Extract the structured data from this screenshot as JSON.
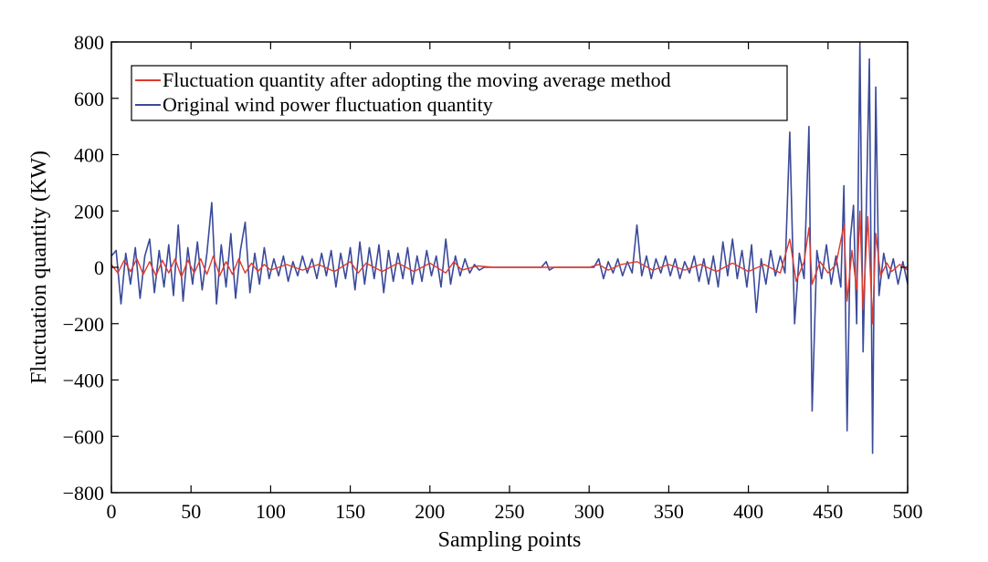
{
  "chart_data": {
    "type": "line",
    "title": "",
    "xlabel": "Sampling points",
    "ylabel": "Fluctuation quantity (KW)",
    "xlim": [
      0,
      500
    ],
    "ylim": [
      -800,
      800
    ],
    "x_ticks": [
      0,
      50,
      100,
      150,
      200,
      250,
      300,
      350,
      400,
      450,
      500
    ],
    "y_ticks": [
      800,
      600,
      400,
      200,
      0,
      -200,
      -400,
      -600,
      -800
    ],
    "x_tick_labels": [
      "0",
      "50",
      "100",
      "150",
      "200",
      "250",
      "300",
      "350",
      "400",
      "450",
      "500"
    ],
    "y_tick_labels": [
      "800",
      "600",
      "400",
      "200",
      "0",
      "−200",
      "−400",
      "−600",
      "−800"
    ],
    "grid": false,
    "legend_position": "top-left",
    "series": [
      {
        "name": "Original wind power fluctuation quantity",
        "color": "#3a4a9a",
        "points": [
          [
            0,
            40
          ],
          [
            3,
            60
          ],
          [
            6,
            -130
          ],
          [
            9,
            50
          ],
          [
            12,
            -60
          ],
          [
            15,
            70
          ],
          [
            18,
            -110
          ],
          [
            21,
            40
          ],
          [
            24,
            100
          ],
          [
            27,
            -90
          ],
          [
            30,
            60
          ],
          [
            33,
            -70
          ],
          [
            36,
            80
          ],
          [
            39,
            -100
          ],
          [
            42,
            150
          ],
          [
            45,
            -120
          ],
          [
            48,
            70
          ],
          [
            51,
            -60
          ],
          [
            54,
            90
          ],
          [
            57,
            -80
          ],
          [
            60,
            50
          ],
          [
            63,
            230
          ],
          [
            66,
            -130
          ],
          [
            69,
            80
          ],
          [
            72,
            -70
          ],
          [
            75,
            120
          ],
          [
            78,
            -110
          ],
          [
            81,
            60
          ],
          [
            84,
            160
          ],
          [
            87,
            -90
          ],
          [
            90,
            50
          ],
          [
            93,
            -60
          ],
          [
            96,
            70
          ],
          [
            99,
            -40
          ],
          [
            102,
            30
          ],
          [
            105,
            -30
          ],
          [
            108,
            40
          ],
          [
            111,
            -50
          ],
          [
            114,
            20
          ],
          [
            117,
            -30
          ],
          [
            120,
            40
          ],
          [
            123,
            -20
          ],
          [
            126,
            30
          ],
          [
            129,
            -40
          ],
          [
            132,
            50
          ],
          [
            135,
            -30
          ],
          [
            138,
            60
          ],
          [
            141,
            -70
          ],
          [
            144,
            50
          ],
          [
            147,
            -40
          ],
          [
            150,
            70
          ],
          [
            153,
            -80
          ],
          [
            156,
            90
          ],
          [
            159,
            -60
          ],
          [
            162,
            70
          ],
          [
            165,
            -40
          ],
          [
            168,
            80
          ],
          [
            171,
            -90
          ],
          [
            174,
            60
          ],
          [
            177,
            -50
          ],
          [
            180,
            50
          ],
          [
            183,
            -40
          ],
          [
            186,
            70
          ],
          [
            189,
            -60
          ],
          [
            192,
            40
          ],
          [
            195,
            -50
          ],
          [
            198,
            60
          ],
          [
            201,
            -30
          ],
          [
            204,
            40
          ],
          [
            207,
            -70
          ],
          [
            210,
            100
          ],
          [
            213,
            -60
          ],
          [
            216,
            40
          ],
          [
            219,
            -30
          ],
          [
            222,
            30
          ],
          [
            225,
            -20
          ],
          [
            228,
            10
          ],
          [
            231,
            -10
          ],
          [
            234,
            0
          ],
          [
            240,
            0
          ],
          [
            250,
            0
          ],
          [
            260,
            0
          ],
          [
            270,
            0
          ],
          [
            273,
            20
          ],
          [
            275,
            -10
          ],
          [
            278,
            0
          ],
          [
            290,
            0
          ],
          [
            300,
            0
          ],
          [
            303,
            0
          ],
          [
            306,
            30
          ],
          [
            309,
            -40
          ],
          [
            312,
            20
          ],
          [
            315,
            -20
          ],
          [
            318,
            30
          ],
          [
            321,
            -30
          ],
          [
            324,
            20
          ],
          [
            327,
            -20
          ],
          [
            330,
            150
          ],
          [
            333,
            -30
          ],
          [
            336,
            40
          ],
          [
            339,
            -40
          ],
          [
            342,
            30
          ],
          [
            345,
            -20
          ],
          [
            348,
            40
          ],
          [
            351,
            -30
          ],
          [
            354,
            30
          ],
          [
            357,
            -40
          ],
          [
            360,
            20
          ],
          [
            363,
            -20
          ],
          [
            366,
            40
          ],
          [
            369,
            -50
          ],
          [
            372,
            30
          ],
          [
            375,
            -60
          ],
          [
            378,
            40
          ],
          [
            381,
            -70
          ],
          [
            384,
            90
          ],
          [
            387,
            -30
          ],
          [
            390,
            100
          ],
          [
            393,
            -40
          ],
          [
            396,
            60
          ],
          [
            399,
            -70
          ],
          [
            402,
            80
          ],
          [
            405,
            -160
          ],
          [
            408,
            30
          ],
          [
            411,
            -60
          ],
          [
            414,
            60
          ],
          [
            417,
            -30
          ],
          [
            420,
            40
          ],
          [
            423,
            -20
          ],
          [
            426,
            480
          ],
          [
            429,
            -200
          ],
          [
            432,
            50
          ],
          [
            435,
            -40
          ],
          [
            438,
            500
          ],
          [
            440,
            -510
          ],
          [
            443,
            60
          ],
          [
            446,
            -40
          ],
          [
            449,
            80
          ],
          [
            452,
            -60
          ],
          [
            455,
            40
          ],
          [
            458,
            -70
          ],
          [
            460,
            290
          ],
          [
            462,
            -580
          ],
          [
            464,
            100
          ],
          [
            466,
            220
          ],
          [
            468,
            -200
          ],
          [
            470,
            800
          ],
          [
            472,
            -300
          ],
          [
            474,
            200
          ],
          [
            476,
            740
          ],
          [
            478,
            -660
          ],
          [
            480,
            640
          ],
          [
            482,
            -100
          ],
          [
            485,
            50
          ],
          [
            488,
            -40
          ],
          [
            491,
            30
          ],
          [
            494,
            -60
          ],
          [
            497,
            20
          ],
          [
            500,
            -60
          ]
        ]
      },
      {
        "name": "Fluctuation quantity after adopting the moving average method",
        "color": "#e03a2c",
        "points": [
          [
            0,
            10
          ],
          [
            4,
            -20
          ],
          [
            8,
            25
          ],
          [
            12,
            -15
          ],
          [
            16,
            30
          ],
          [
            20,
            -25
          ],
          [
            24,
            20
          ],
          [
            28,
            -30
          ],
          [
            32,
            25
          ],
          [
            36,
            -20
          ],
          [
            40,
            30
          ],
          [
            44,
            -35
          ],
          [
            48,
            25
          ],
          [
            52,
            -20
          ],
          [
            56,
            30
          ],
          [
            60,
            -25
          ],
          [
            64,
            40
          ],
          [
            68,
            -30
          ],
          [
            72,
            20
          ],
          [
            76,
            -25
          ],
          [
            80,
            30
          ],
          [
            84,
            -20
          ],
          [
            88,
            15
          ],
          [
            92,
            -15
          ],
          [
            96,
            10
          ],
          [
            100,
            -10
          ],
          [
            110,
            10
          ],
          [
            120,
            -10
          ],
          [
            130,
            10
          ],
          [
            140,
            -15
          ],
          [
            150,
            20
          ],
          [
            155,
            -20
          ],
          [
            160,
            15
          ],
          [
            170,
            -15
          ],
          [
            180,
            15
          ],
          [
            190,
            -15
          ],
          [
            200,
            15
          ],
          [
            210,
            -20
          ],
          [
            215,
            20
          ],
          [
            220,
            -10
          ],
          [
            230,
            5
          ],
          [
            240,
            0
          ],
          [
            300,
            0
          ],
          [
            306,
            10
          ],
          [
            312,
            -10
          ],
          [
            320,
            10
          ],
          [
            330,
            20
          ],
          [
            340,
            -10
          ],
          [
            350,
            10
          ],
          [
            360,
            -10
          ],
          [
            370,
            10
          ],
          [
            380,
            -15
          ],
          [
            390,
            15
          ],
          [
            400,
            -15
          ],
          [
            410,
            10
          ],
          [
            420,
            -20
          ],
          [
            426,
            100
          ],
          [
            430,
            -50
          ],
          [
            435,
            20
          ],
          [
            438,
            140
          ],
          [
            440,
            -60
          ],
          [
            445,
            20
          ],
          [
            450,
            -20
          ],
          [
            455,
            10
          ],
          [
            460,
            150
          ],
          [
            462,
            -120
          ],
          [
            465,
            60
          ],
          [
            468,
            -80
          ],
          [
            470,
            200
          ],
          [
            472,
            -150
          ],
          [
            475,
            180
          ],
          [
            478,
            -200
          ],
          [
            480,
            120
          ],
          [
            483,
            -30
          ],
          [
            487,
            15
          ],
          [
            490,
            -15
          ],
          [
            495,
            10
          ],
          [
            500,
            -10
          ]
        ]
      }
    ]
  }
}
